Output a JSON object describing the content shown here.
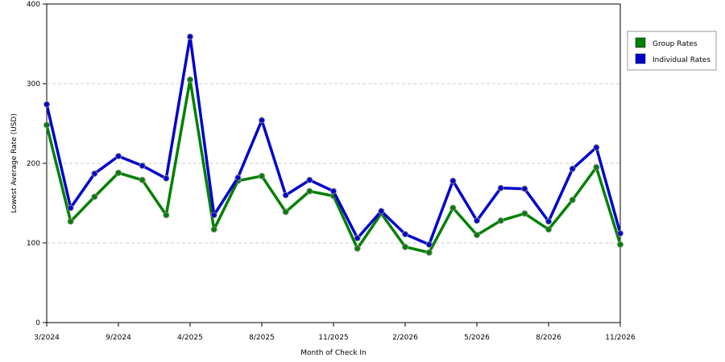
{
  "chart_data": {
    "type": "line",
    "xlabel": "Month of Check In",
    "ylabel": "Lowest Average Rate (USD)",
    "ylim": [
      0,
      400
    ],
    "yticks": [
      "0",
      "100",
      "200",
      "300",
      "400"
    ],
    "x_tick_labels": [
      "3/2024",
      "9/2024",
      "4/2025",
      "8/2025",
      "11/2025",
      "2/2026",
      "5/2026",
      "8/2026",
      "11/2026"
    ],
    "grid": "horizontal dashed",
    "legend_position": "right",
    "series": [
      {
        "name": "Group Rates",
        "color": "#008000",
        "values": [
          248,
          127,
          158,
          188,
          179,
          135,
          305,
          117,
          178,
          184,
          139,
          165,
          159,
          93,
          137,
          95,
          88,
          144,
          110,
          128,
          137,
          117,
          154,
          195,
          98
        ]
      },
      {
        "name": "Individual Rates",
        "color": "#0000cc",
        "values": [
          274,
          144,
          187,
          209,
          197,
          181,
          359,
          135,
          182,
          254,
          160,
          179,
          165,
          106,
          140,
          111,
          98,
          178,
          128,
          169,
          168,
          127,
          193,
          220,
          112
        ]
      }
    ]
  }
}
